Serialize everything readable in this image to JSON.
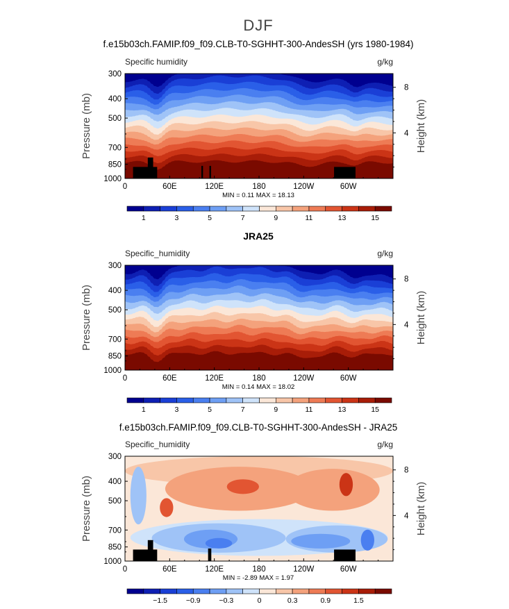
{
  "figure": {
    "title": "DJF"
  },
  "chart_data": [
    {
      "type": "heatmap",
      "title": "f.e15b03ch.FAMIP.f09_f09.CLB-T0-SGHHT-300-AndesSH (yrs 1980-1984)",
      "left_label": "Specific humidity",
      "units_label": "g/kg",
      "ylabel": "Pressure (mb)",
      "y2label": "Height (km)",
      "x_ticks": [
        "0",
        "60E",
        "120E",
        "180",
        "120W",
        "60W"
      ],
      "x_values": [
        0,
        60,
        120,
        180,
        240,
        300
      ],
      "xlim": [
        0,
        360
      ],
      "y_ticks": [
        "300",
        "400",
        "500",
        "700",
        "850",
        "1000"
      ],
      "y_values": [
        300,
        400,
        500,
        700,
        850,
        1000
      ],
      "ylim": [
        300,
        1000
      ],
      "y2_ticks": [
        "8",
        "4"
      ],
      "y2_values": [
        8,
        4
      ],
      "stats": "MIN =    0.11   MAX =   18.13",
      "min": 0.11,
      "max": 18.13,
      "colorbar_labels": [
        "1",
        "3",
        "5",
        "7",
        "9",
        "11",
        "13",
        "15"
      ],
      "colorbar_label_indices": [
        1,
        3,
        5,
        7,
        9,
        11,
        13,
        15
      ],
      "colorbar_colors": [
        "#00008f",
        "#0e1fb3",
        "#1a3fd6",
        "#2a5fe8",
        "#4a7ff0",
        "#6e9ff4",
        "#9fc3f7",
        "#cfe3fa",
        "#fbe7d8",
        "#f8c6a8",
        "#f4a27c",
        "#ee7b55",
        "#e25532",
        "#cb3416",
        "#a81d08",
        "#7a0a00"
      ]
    },
    {
      "type": "heatmap",
      "title": "JRA25",
      "left_label": "Specific_humidity",
      "units_label": "g/kg",
      "ylabel": "Pressure (mb)",
      "y2label": "Height (km)",
      "x_ticks": [
        "0",
        "60E",
        "120E",
        "180",
        "120W",
        "60W"
      ],
      "x_values": [
        0,
        60,
        120,
        180,
        240,
        300
      ],
      "xlim": [
        0,
        360
      ],
      "y_ticks": [
        "300",
        "400",
        "500",
        "700",
        "850",
        "1000"
      ],
      "y_values": [
        300,
        400,
        500,
        700,
        850,
        1000
      ],
      "ylim": [
        300,
        1000
      ],
      "y2_ticks": [
        "8",
        "4"
      ],
      "y2_values": [
        8,
        4
      ],
      "stats": "MIN =    0.14   MAX =   18.02",
      "min": 0.14,
      "max": 18.02,
      "colorbar_labels": [
        "1",
        "3",
        "5",
        "7",
        "9",
        "11",
        "13",
        "15"
      ],
      "colorbar_label_indices": [
        1,
        3,
        5,
        7,
        9,
        11,
        13,
        15
      ],
      "colorbar_colors": [
        "#00008f",
        "#0e1fb3",
        "#1a3fd6",
        "#2a5fe8",
        "#4a7ff0",
        "#6e9ff4",
        "#9fc3f7",
        "#cfe3fa",
        "#fbe7d8",
        "#f8c6a8",
        "#f4a27c",
        "#ee7b55",
        "#e25532",
        "#cb3416",
        "#a81d08",
        "#7a0a00"
      ]
    },
    {
      "type": "heatmap",
      "title": "f.e15b03ch.FAMIP.f09_f09.CLB-T0-SGHHT-300-AndesSH - JRA25",
      "left_label": "Specific_humidity",
      "units_label": "g/kg",
      "ylabel": "Pressure (mb)",
      "y2label": "Height (km)",
      "x_ticks": [
        "0",
        "60E",
        "120E",
        "180",
        "120W",
        "60W"
      ],
      "x_values": [
        0,
        60,
        120,
        180,
        240,
        300
      ],
      "xlim": [
        0,
        360
      ],
      "y_ticks": [
        "300",
        "400",
        "500",
        "700",
        "850",
        "1000"
      ],
      "y_values": [
        300,
        400,
        500,
        700,
        850,
        1000
      ],
      "ylim": [
        300,
        1000
      ],
      "y2_ticks": [
        "8",
        "4"
      ],
      "y2_values": [
        8,
        4
      ],
      "stats": "MIN =   -2.89   MAX =    1.97",
      "min": -2.89,
      "max": 1.97,
      "colorbar_labels": [
        "−1.5",
        "−0.9",
        "−0.3",
        "0",
        "0.3",
        "0.9",
        "1.5"
      ],
      "colorbar_label_indices": [
        2,
        4,
        6,
        8,
        10,
        12,
        14
      ],
      "colorbar_colors": [
        "#00008f",
        "#0e1fb3",
        "#1a3fd6",
        "#2a5fe8",
        "#4a7ff0",
        "#6e9ff4",
        "#9fc3f7",
        "#cfe3fa",
        "#fbe7d8",
        "#f8c6a8",
        "#f4a27c",
        "#ee7b55",
        "#e25532",
        "#cb3416",
        "#a81d08",
        "#7a0a00"
      ]
    }
  ]
}
